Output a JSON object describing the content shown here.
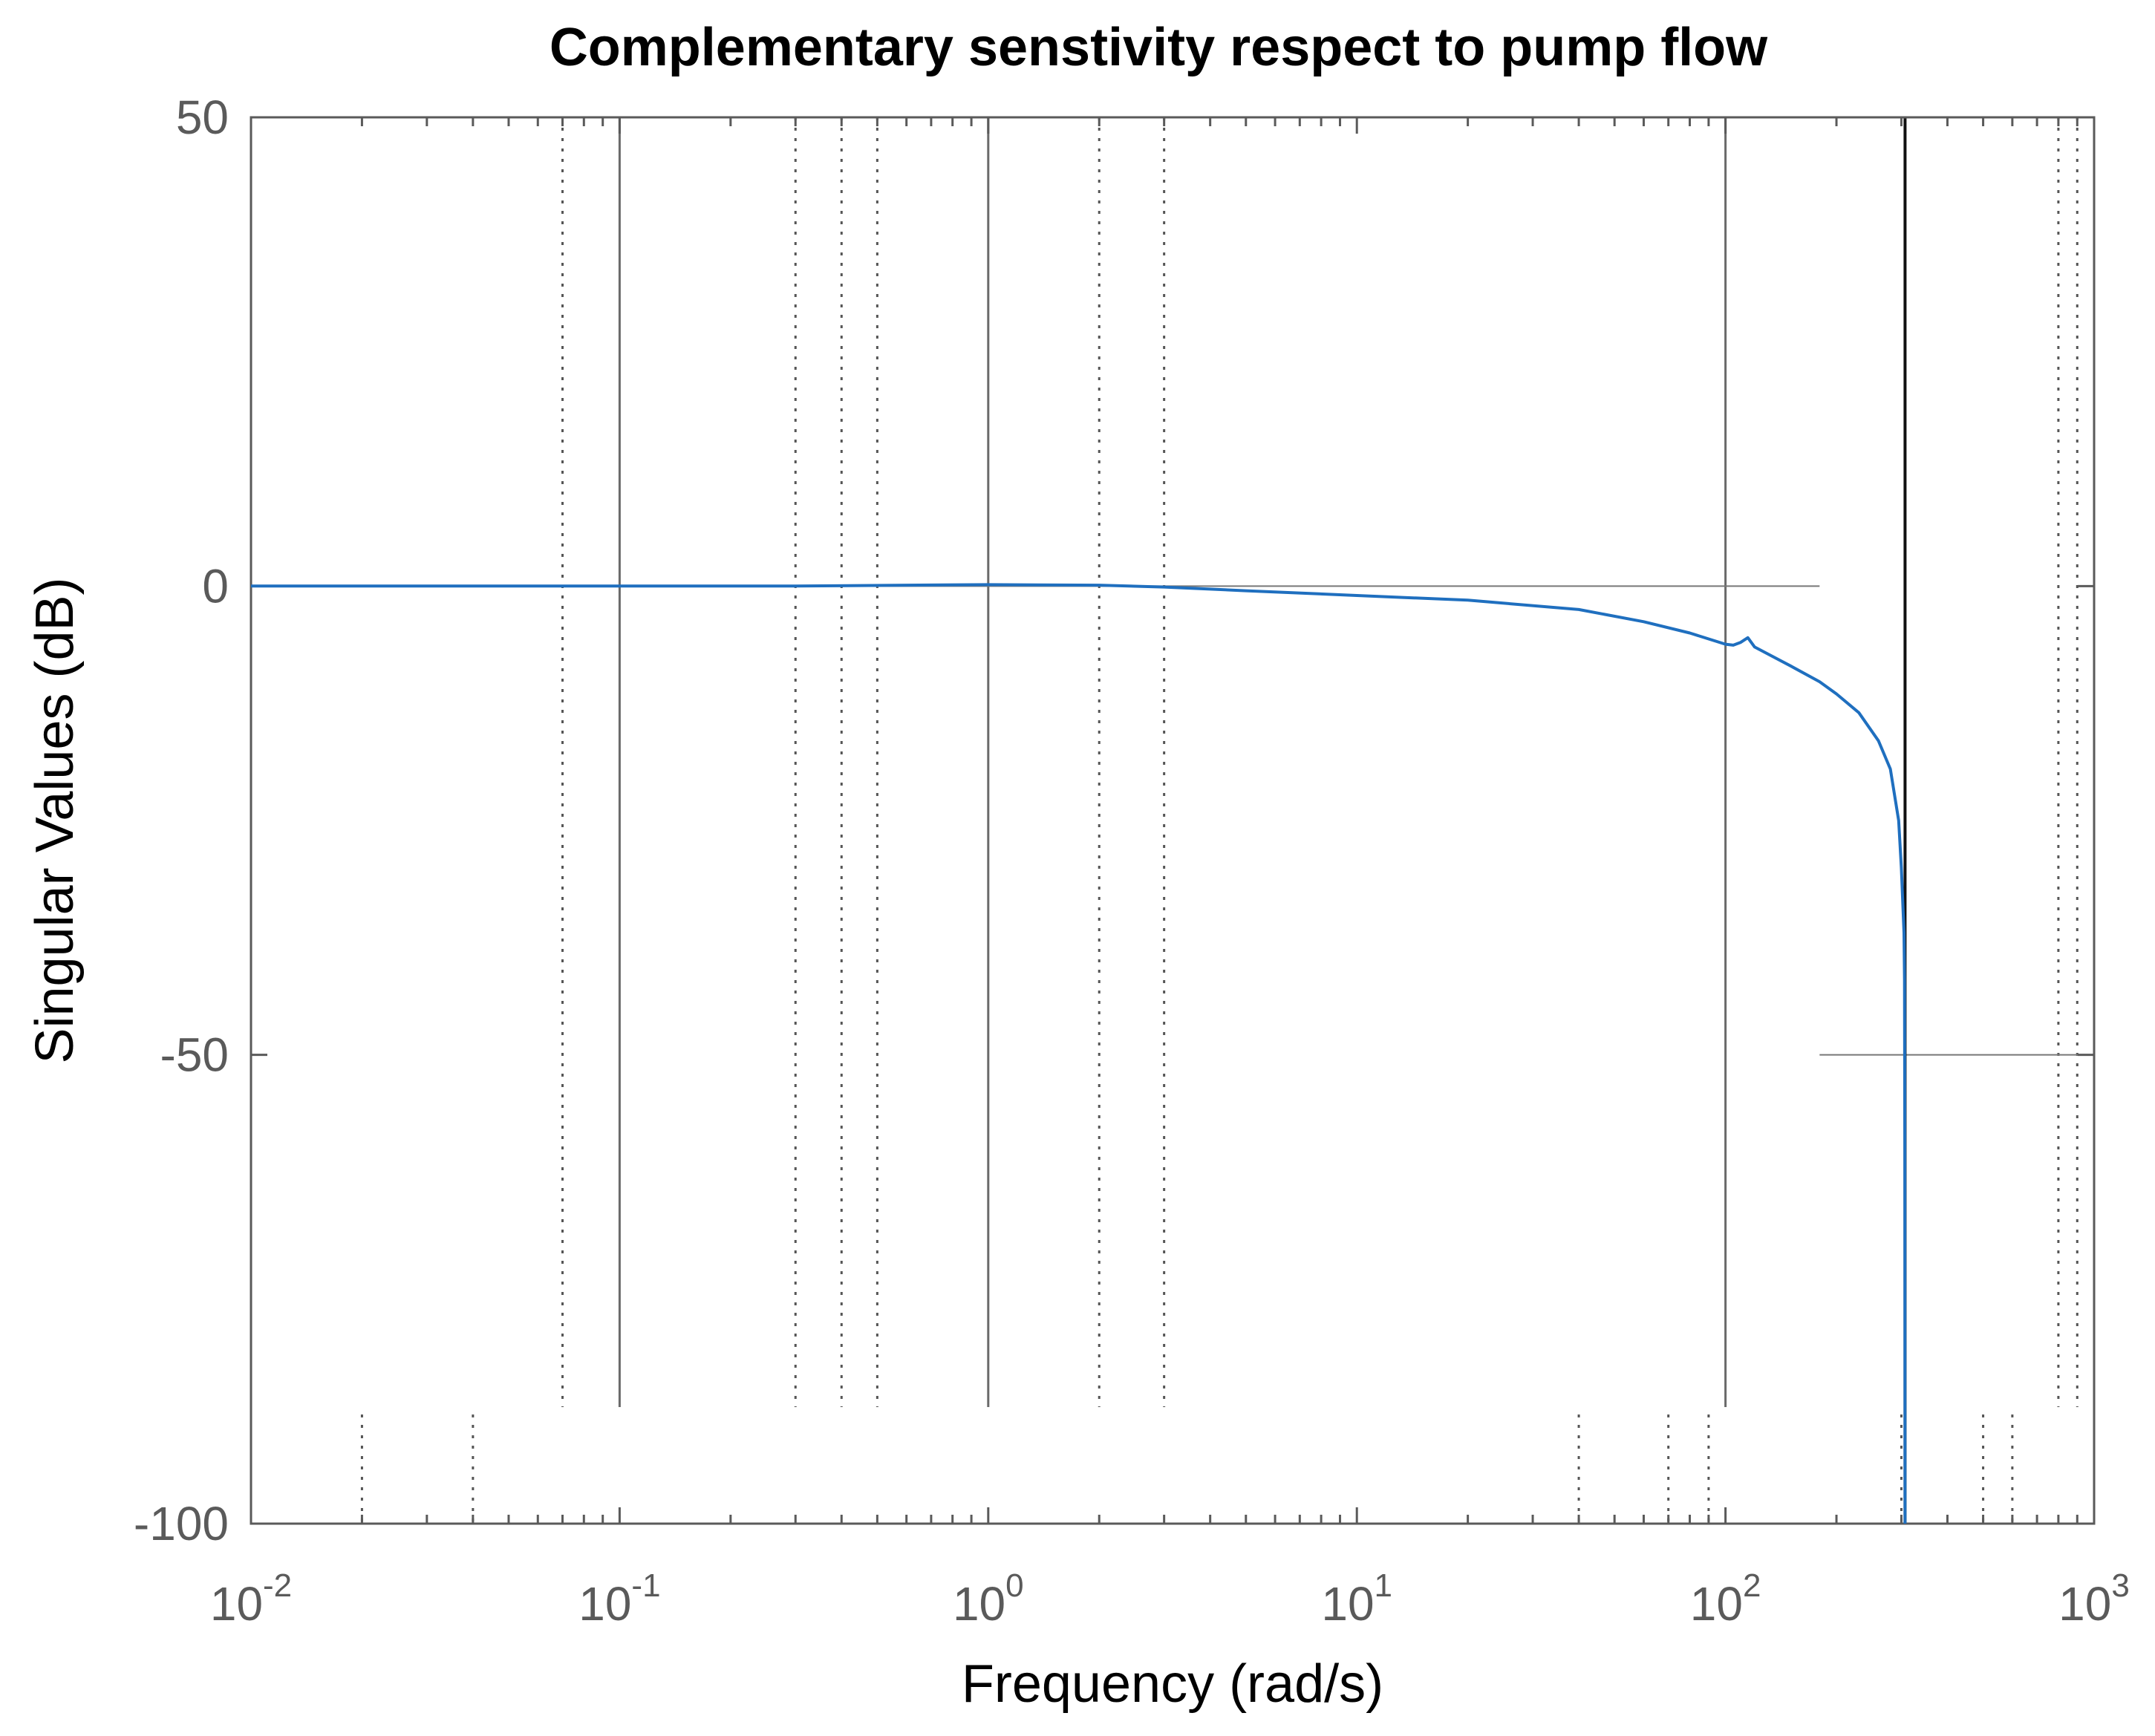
{
  "chart_data": {
    "type": "line",
    "title": "Complementary senstivity respect to pump flow",
    "xlabel": "Frequency (rad/s)",
    "ylabel": "Singular Values (dB)",
    "xscale": "log",
    "xlim": [
      0.01,
      1000
    ],
    "ylim": [
      -100,
      50
    ],
    "xticks": [
      {
        "value": 0.01,
        "base": "10",
        "exp": "-2"
      },
      {
        "value": 0.1,
        "base": "10",
        "exp": "-1"
      },
      {
        "value": 1,
        "base": "10",
        "exp": "0"
      },
      {
        "value": 10,
        "base": "10",
        "exp": "1"
      },
      {
        "value": 100,
        "base": "10",
        "exp": "2"
      },
      {
        "value": 1000,
        "base": "10",
        "exp": "3"
      }
    ],
    "yticks": [
      {
        "value": 50,
        "label": "50"
      },
      {
        "value": 0,
        "label": "0"
      },
      {
        "value": -50,
        "label": "-50"
      },
      {
        "value": -100,
        "label": "-100"
      }
    ],
    "line_color": "#1f6fbf",
    "series": [
      {
        "name": "Singular value",
        "x": [
          0.01,
          0.1,
          0.3,
          0.6,
          1,
          2,
          3,
          5,
          10,
          20,
          40,
          60,
          80,
          100,
          105,
          110,
          115,
          120,
          150,
          180,
          200,
          230,
          260,
          280,
          295,
          300,
          305,
          306,
          306.5,
          307
        ],
        "y": [
          0,
          0,
          0,
          0.1,
          0.15,
          0.1,
          -0.1,
          -0.5,
          -1.0,
          -1.5,
          -2.5,
          -3.8,
          -5.0,
          -6.2,
          -6.3,
          -6.0,
          -5.5,
          -6.5,
          -8.5,
          -10.2,
          -11.5,
          -13.5,
          -16.5,
          -19.5,
          -25.0,
          -30.0,
          -37.0,
          -42.0,
          -60.0,
          -100.0
        ]
      }
    ],
    "solid_vertical_lines_x": [
      0.1,
      1,
      100
    ],
    "dark_vertical_line_x": 307,
    "dotted_vertical_lines_upper_x": [
      0.07,
      0.3,
      0.4,
      0.5,
      2,
      3,
      800,
      900
    ],
    "dotted_vertical_lines_lower_x": [
      0.02,
      0.04,
      40,
      70,
      90,
      300,
      500,
      600
    ],
    "horizontal_ref_segments": [
      {
        "y": 0,
        "x_from": 0.01,
        "x_to": 180
      },
      {
        "y": -50,
        "x_from": 180,
        "x_to": 1000
      }
    ],
    "grid": false
  }
}
